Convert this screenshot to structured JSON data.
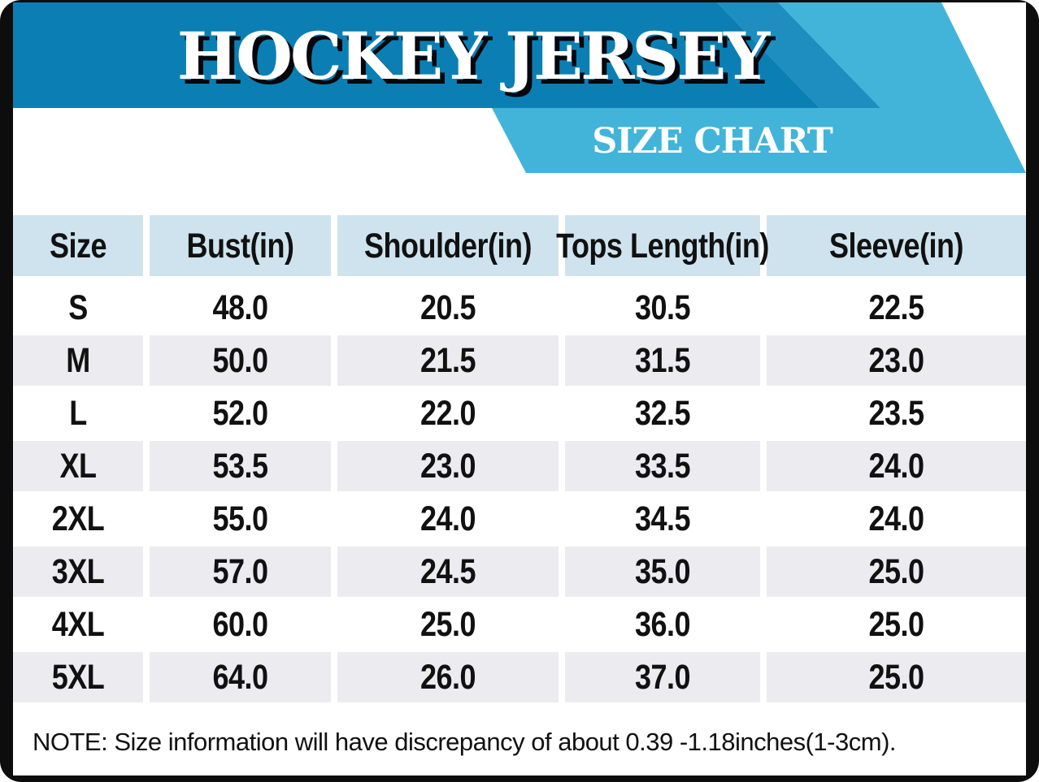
{
  "banner": {
    "title": "HOCKEY JERSEY",
    "subtitle": "SIZE CHART"
  },
  "note": "NOTE: Size information will have discrepancy of about 0.39 -1.18inches(1-3cm).",
  "colors": {
    "dark_blue": "#0b7fb3",
    "medium_blue": "#1e8dc0",
    "light_blue": "#42b4d9",
    "header_cell": "#cfe3ee",
    "row_alt": "#ebebf0",
    "frame": "#0d0d0d",
    "text": "#111111"
  },
  "chart_data": {
    "type": "table",
    "title": "HOCKEY JERSEY",
    "subtitle": "SIZE CHART",
    "columns": [
      "Size",
      "Bust(in)",
      "Shoulder(in)",
      "Tops Length(in)",
      "Sleeve(in)"
    ],
    "rows": [
      [
        "S",
        "48.0",
        "20.5",
        "30.5",
        "22.5"
      ],
      [
        "M",
        "50.0",
        "21.5",
        "31.5",
        "23.0"
      ],
      [
        "L",
        "52.0",
        "22.0",
        "32.5",
        "23.5"
      ],
      [
        "XL",
        "53.5",
        "23.0",
        "33.5",
        "24.0"
      ],
      [
        "2XL",
        "55.0",
        "24.0",
        "34.5",
        "24.0"
      ],
      [
        "3XL",
        "57.0",
        "24.5",
        "35.0",
        "25.0"
      ],
      [
        "4XL",
        "60.0",
        "25.0",
        "36.0",
        "25.0"
      ],
      [
        "5XL",
        "64.0",
        "26.0",
        "37.0",
        "25.0"
      ]
    ],
    "note": "NOTE: Size information will have discrepancy of about 0.39 -1.18inches(1-3cm).",
    "units": "inches"
  }
}
